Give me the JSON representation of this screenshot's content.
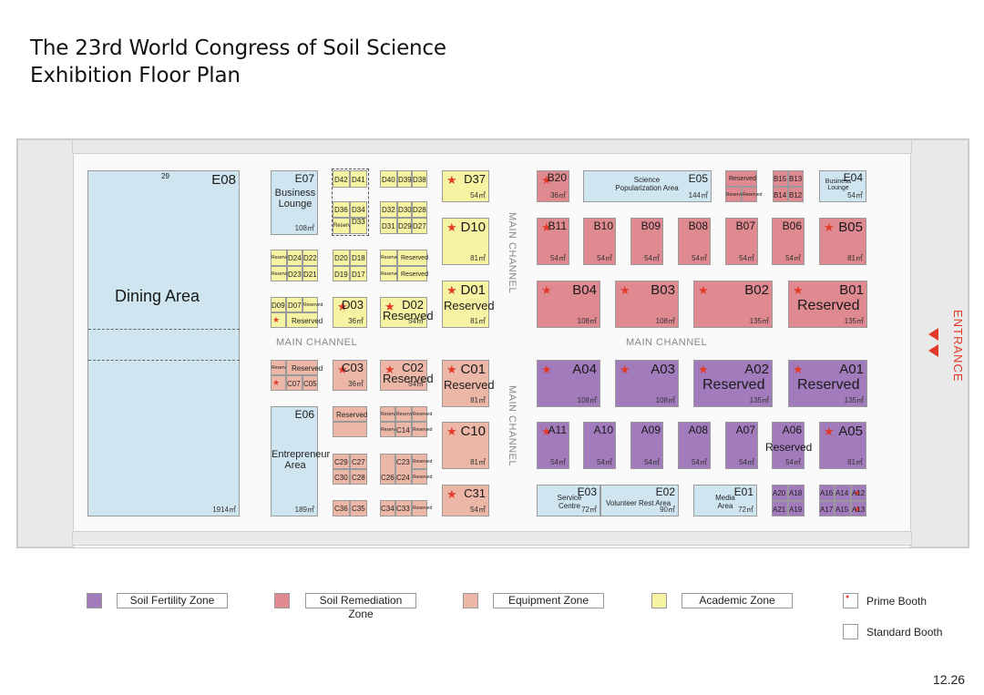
{
  "title": {
    "line1": "The 23rd World Congress of Soil Science",
    "line2": "Exhibition Floor Plan"
  },
  "colors": {
    "soil_fertility": "#a27bbd",
    "soil_remediation": "#df8a90",
    "equipment": "#ecb7a6",
    "academic": "#f6f3a2",
    "service": "#cfe6f1",
    "prime_star": "#e23a2a"
  },
  "channels": {
    "main_left": "MAIN CHANNEL",
    "main_right": "MAIN CHANNEL",
    "vertical_top": "MAIN CHANNEL",
    "vertical_bottom": "MAIN CHANNEL"
  },
  "entrance": "ENTRANCE",
  "dining": {
    "id": "E08",
    "name": "Dining Area",
    "area": "1914㎡",
    "num": "29"
  },
  "services": {
    "E07": {
      "name": "Business Lounge",
      "area": "108㎡"
    },
    "E06": {
      "name": "Entrepreneur Area",
      "area": "189㎡"
    },
    "E05": {
      "name": "Science Popularization Area",
      "area": "144㎡"
    },
    "E04": {
      "name": "Business Lounge",
      "area": "54㎡"
    },
    "E03": {
      "name": "Service Centre",
      "area": "72㎡"
    },
    "E02": {
      "name": "Volunteer Rest Area",
      "area": "90㎡"
    },
    "E01": {
      "name": "Media Area",
      "area": "72㎡"
    }
  },
  "reserved": "Reserved",
  "areas": {
    "a54": "54㎡",
    "a36": "36㎡",
    "a81": "81㎡",
    "a108": "108㎡",
    "a135": "135㎡"
  },
  "booths": {
    "D37": "D37",
    "D10": "D10",
    "D01": "D01",
    "D03": "D03",
    "D02": "D02",
    "C03": "C03",
    "C02": "C02",
    "C01": "C01",
    "C10": "C10",
    "C31": "C31",
    "C14": "C14",
    "C07": "C07",
    "C05": "C05",
    "B20": "B20",
    "B15": "B15",
    "B13": "B13",
    "B14": "B14",
    "B12": "B12",
    "B11": "B11",
    "B10": "B10",
    "B09": "B09",
    "B08": "B08",
    "B07": "B07",
    "B06": "B06",
    "B05": "B05",
    "B04": "B04",
    "B03": "B03",
    "B02": "B02",
    "B01": "B01",
    "A04": "A04",
    "A03": "A03",
    "A02": "A02",
    "A01": "A01",
    "A11": "A11",
    "A10": "A10",
    "A09": "A09",
    "A08": "A08",
    "A07": "A07",
    "A06": "A06",
    "A05": "A05"
  },
  "d_grid_top": [
    "D42",
    "D41",
    "D40",
    "D39",
    "D38",
    "D36",
    "D34",
    "D33",
    "D32",
    "D30",
    "D28",
    "D31",
    "D29",
    "D27"
  ],
  "d_grid_mid": [
    "D24",
    "D22",
    "D23",
    "D21",
    "D20",
    "D18",
    "D19",
    "D17",
    "D09",
    "D07"
  ],
  "c_grid": [
    "C29",
    "C27",
    "C30",
    "C28",
    "C26",
    "C24",
    "C23",
    "C36",
    "C35",
    "C34",
    "C33"
  ],
  "a_grid": [
    "A20",
    "A18",
    "A21",
    "A19",
    "A16",
    "A14",
    "A12",
    "A17",
    "A15",
    "A13"
  ],
  "legend": {
    "fertility": "Soil Fertility Zone",
    "remediation": "Soil Remediation Zone",
    "equipment": "Equipment Zone",
    "academic": "Academic Zone",
    "prime": "Prime Booth",
    "standard": "Standard Booth"
  },
  "date": "12.26"
}
